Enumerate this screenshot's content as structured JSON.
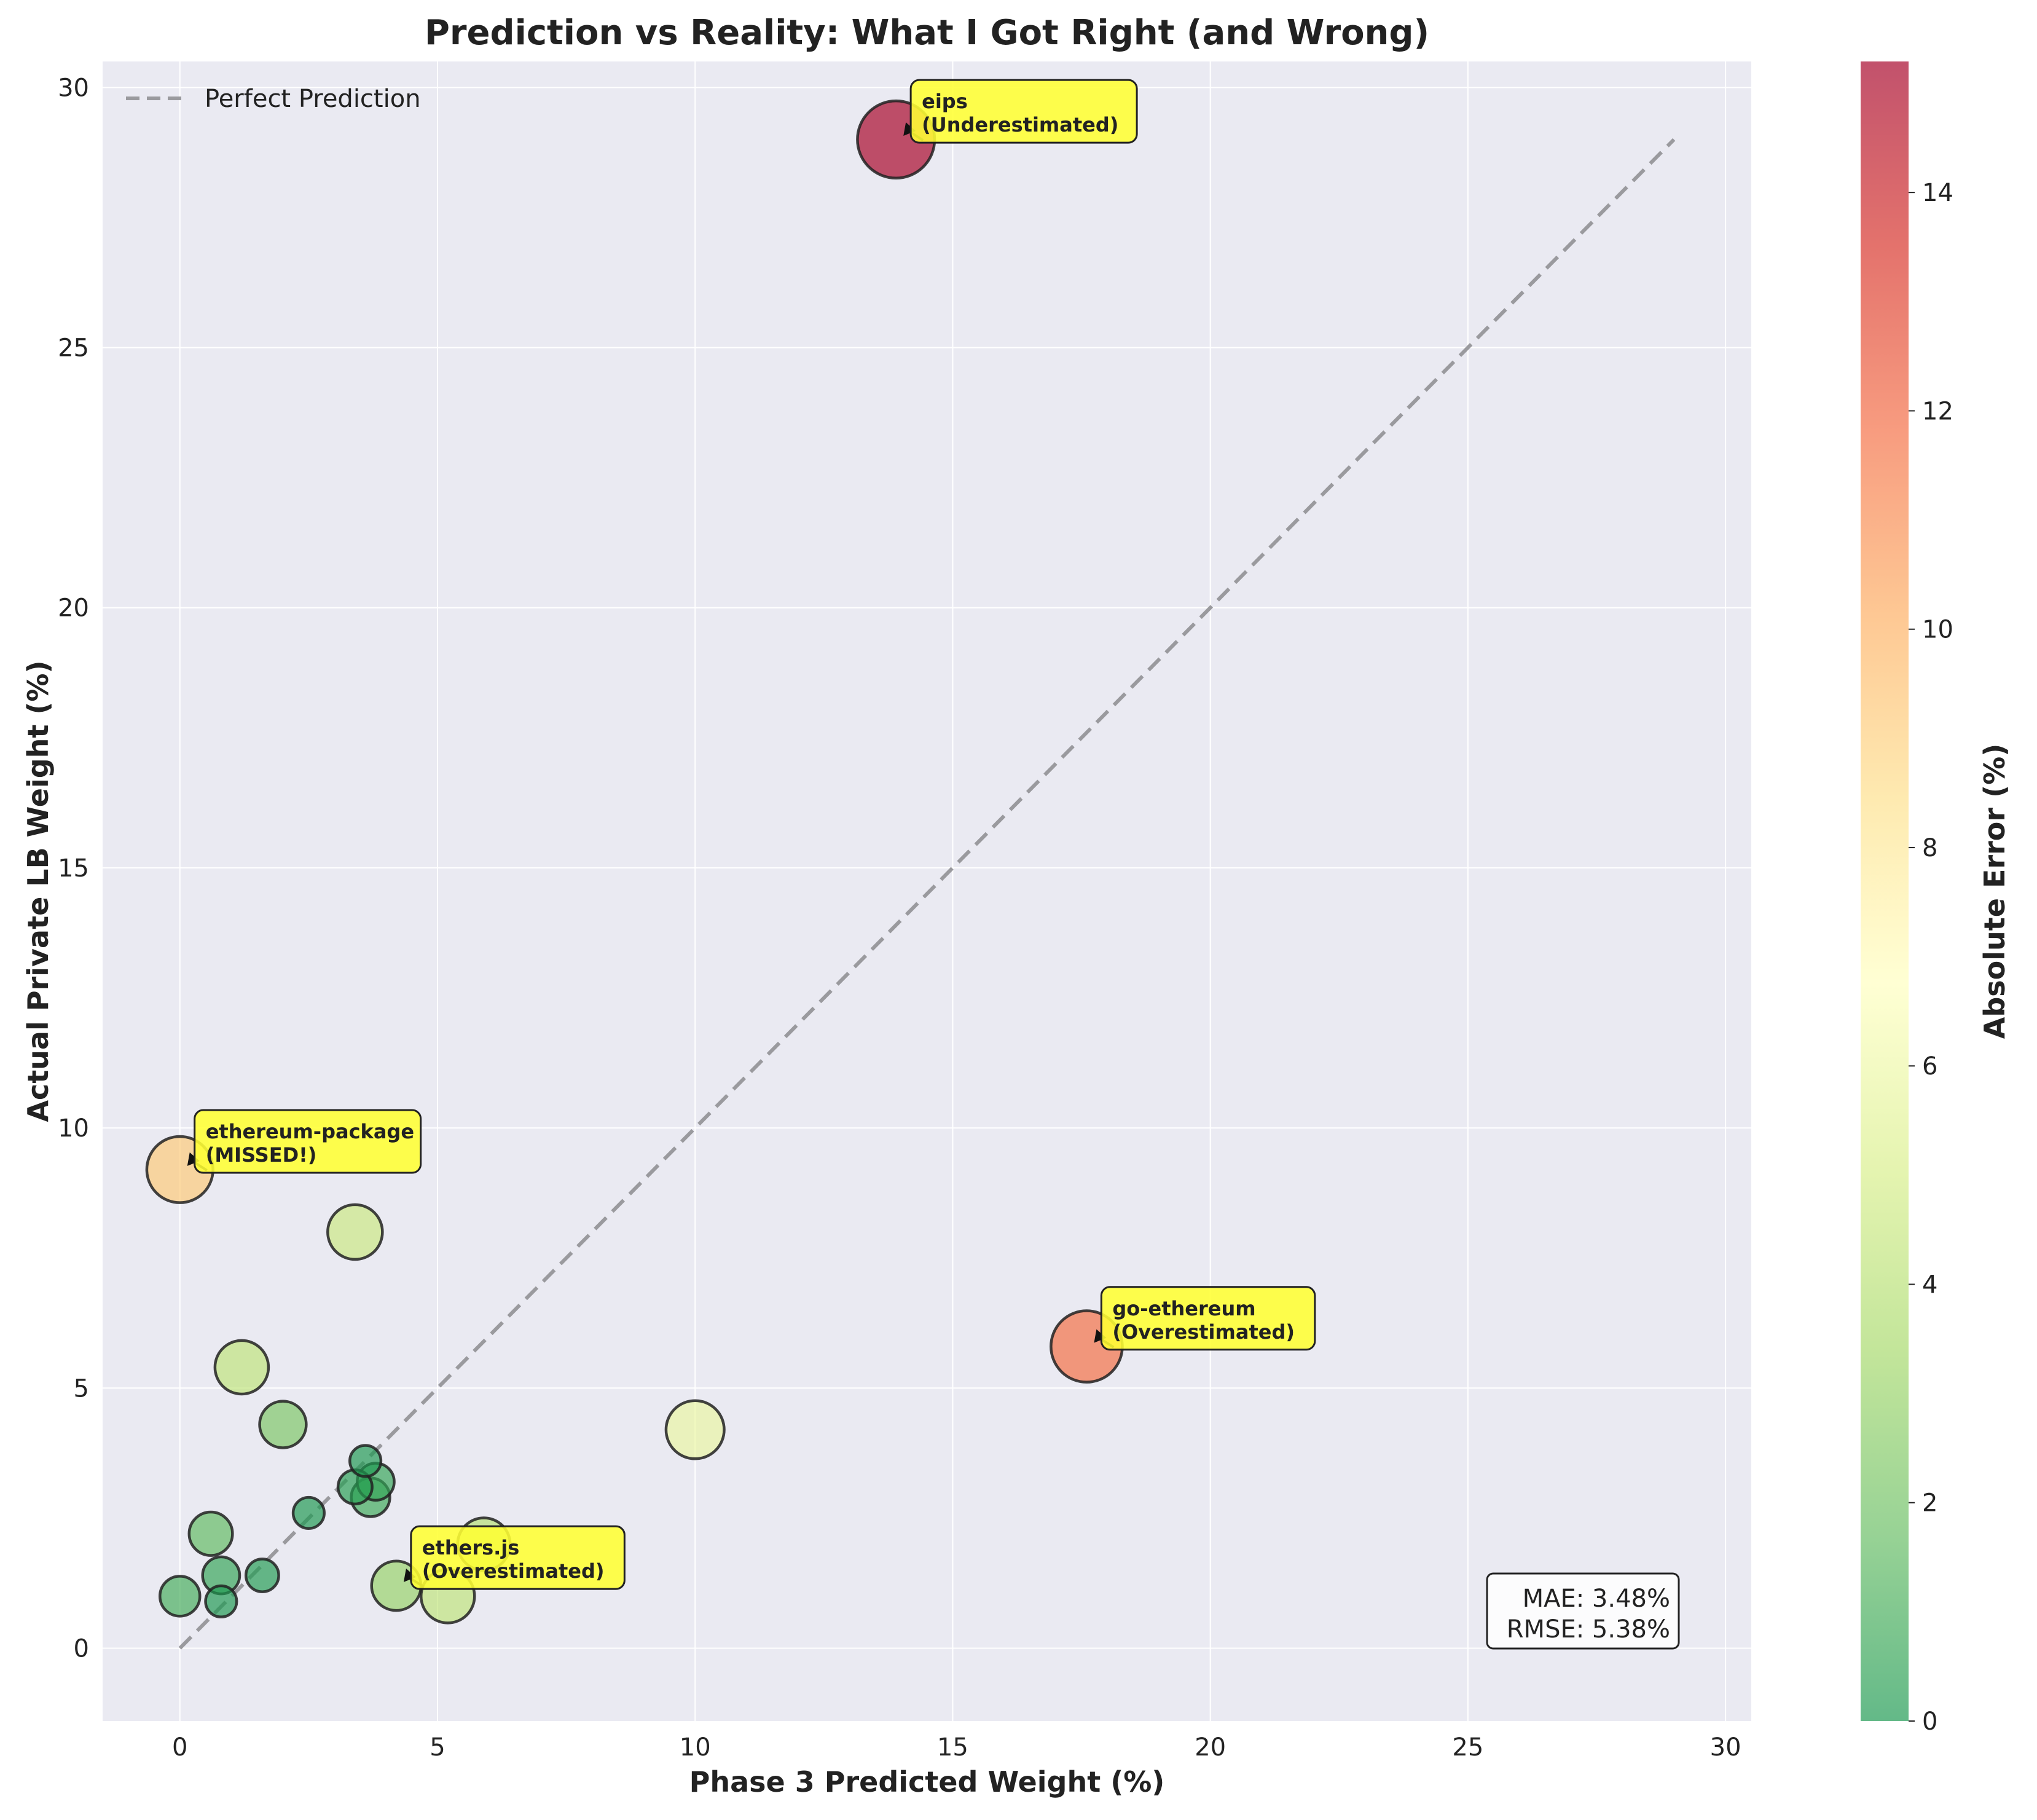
{
  "chart_data": {
    "type": "scatter",
    "title": "Prediction vs Reality: What I Got Right (and Wrong)",
    "xlabel": "Phase 3 Predicted Weight (%)",
    "ylabel": "Actual Private LB Weight (%)",
    "xlim": [
      -1.5,
      30.5
    ],
    "ylim": [
      -1.4,
      30.5
    ],
    "xticks": [
      "0",
      "5",
      "10",
      "15",
      "20",
      "25",
      "30"
    ],
    "yticks": [
      "0",
      "5",
      "10",
      "15",
      "20",
      "25",
      "30"
    ],
    "grid": true,
    "legend": {
      "placement": "top-left",
      "entries": [
        "Perfect Prediction"
      ]
    },
    "reference_line": {
      "name": "Perfect Prediction",
      "from": [
        0,
        0
      ],
      "to": [
        29,
        29
      ]
    },
    "colorbar": {
      "label": "Absolute Error (%)",
      "range": [
        0,
        15.2
      ],
      "ticks": [
        "0",
        "2",
        "4",
        "6",
        "8",
        "10",
        "12",
        "14"
      ],
      "colormap": [
        "#1a9850",
        "#66bd63",
        "#a6d96a",
        "#d9ef8b",
        "#ffffbf",
        "#fee08b",
        "#fdae61",
        "#f46d43",
        "#d73027",
        "#a50026"
      ]
    },
    "points": [
      {
        "x": 13.9,
        "y": 29.0,
        "error": 15.1
      },
      {
        "x": 0.0,
        "y": 9.2,
        "error": 9.2
      },
      {
        "x": 17.6,
        "y": 5.8,
        "error": 11.8
      },
      {
        "x": 3.4,
        "y": 8.0,
        "error": 4.6
      },
      {
        "x": 1.2,
        "y": 5.4,
        "error": 4.2
      },
      {
        "x": 10.0,
        "y": 4.2,
        "error": 5.8
      },
      {
        "x": 2.0,
        "y": 4.3,
        "error": 2.3
      },
      {
        "x": 3.6,
        "y": 3.6,
        "error": 0.1
      },
      {
        "x": 3.8,
        "y": 3.2,
        "error": 0.6
      },
      {
        "x": 3.4,
        "y": 3.1,
        "error": 0.3
      },
      {
        "x": 3.7,
        "y": 2.9,
        "error": 0.8
      },
      {
        "x": 2.5,
        "y": 2.6,
        "error": 0.1
      },
      {
        "x": 0.6,
        "y": 2.2,
        "error": 1.6
      },
      {
        "x": 5.9,
        "y": 2.0,
        "error": 3.9
      },
      {
        "x": 1.6,
        "y": 1.4,
        "error": 0.2
      },
      {
        "x": 0.8,
        "y": 1.4,
        "error": 0.6
      },
      {
        "x": 4.2,
        "y": 1.2,
        "error": 3.0
      },
      {
        "x": 5.2,
        "y": 1.0,
        "error": 4.2
      },
      {
        "x": 0.0,
        "y": 1.0,
        "error": 1.0
      },
      {
        "x": 0.8,
        "y": 0.9,
        "error": 0.1
      }
    ],
    "annotations": [
      {
        "lines": [
          "eips",
          "(Underestimated)"
        ],
        "x": 13.9,
        "y": 29.0,
        "text_x": 14.4,
        "text_y": 29.6
      },
      {
        "lines": [
          "ethereum-package",
          "(MISSED!)"
        ],
        "x": 0.0,
        "y": 9.2,
        "text_x": 0.5,
        "text_y": 9.8
      },
      {
        "lines": [
          "go-ethereum",
          "(Overestimated)"
        ],
        "x": 17.6,
        "y": 5.8,
        "text_x": 18.1,
        "text_y": 6.4
      },
      {
        "lines": [
          "ethers.js",
          "(Overestimated)"
        ],
        "x": 4.2,
        "y": 1.2,
        "text_x": 4.7,
        "text_y": 1.8
      }
    ],
    "stats_box": [
      "MAE: 3.48%",
      "RMSE: 5.38%"
    ]
  }
}
